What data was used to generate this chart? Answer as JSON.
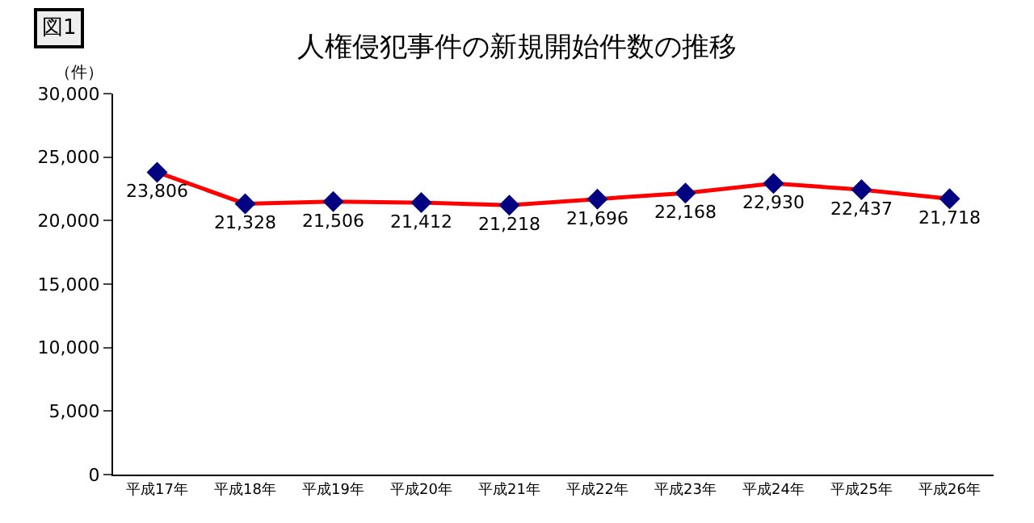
{
  "chart_data": {
    "type": "line",
    "title": "人権侵犯事件の新規開始件数の推移",
    "ylabel": "（件）",
    "annotations": [
      "図1"
    ],
    "categories": [
      "平成17年",
      "平成18年",
      "平成19年",
      "平成20年",
      "平成21年",
      "平成22年",
      "平成23年",
      "平成24年",
      "平成25年",
      "平成26年"
    ],
    "series": [
      {
        "color": "#ff0000",
        "colors": [
          "#000080",
          "#000080",
          "#000080",
          "#000080",
          "#000080",
          "#000080",
          "#000080",
          "#000080",
          "#000080",
          "#000080"
        ],
        "values": [
          23806,
          21328,
          21506,
          21412,
          21218,
          21696,
          22168,
          22930,
          22437,
          21718
        ],
        "value_labels": [
          "23,806",
          "21,328",
          "21,506",
          "21,412",
          "21,218",
          "21,696",
          "22,168",
          "22,930",
          "22,437",
          "21,718"
        ]
      }
    ],
    "ylim": [
      0,
      30000
    ],
    "yticks": [
      {
        "value": 0,
        "label": "0"
      },
      {
        "value": 5000,
        "label": "5,000"
      },
      {
        "value": 10000,
        "label": "10,000"
      },
      {
        "value": 15000,
        "label": "15,000"
      },
      {
        "value": 20000,
        "label": "20,000"
      },
      {
        "value": 25000,
        "label": "25,000"
      },
      {
        "value": 30000,
        "label": "30,000"
      }
    ],
    "marker": "diamond",
    "line_style": "solid",
    "grid": false
  }
}
